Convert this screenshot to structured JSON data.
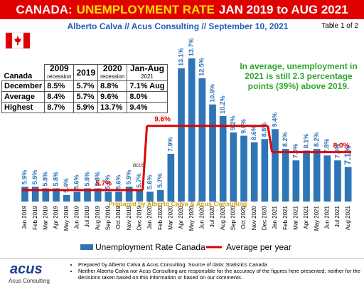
{
  "chart_data": {
    "type": "bar",
    "title": [
      "CANADA:",
      "UNEMPLOYMENT RATE",
      "JAN 2019 to AUG 2021"
    ],
    "subtitle": "Alberto Calva // Acus Consulting // September 10, 2021",
    "page_note": "Table 1 of 2",
    "annotation": "In average, unemployment in 2021 is still 2.3 percentage points (39%) above 2019.",
    "watermark": "Prepared by Alberto Calva & Acus Consulting",
    "logo_mark": "acus",
    "categories": [
      "Jan 2019",
      "Feb 2019",
      "Mar 2019",
      "Apr 2019",
      "May 2019",
      "Jun 2019",
      "Jul 2019",
      "Aug 2019",
      "Sep 2019",
      "Oct 2019",
      "Nov 2019",
      "Dec 2019",
      "Jan 2020",
      "Feb 2020",
      "Mar 2020",
      "Apr 2020",
      "May 2020",
      "Jun 2020",
      "Jul 2020",
      "Aug 2020",
      "Sep 2020",
      "Oct 2020",
      "Nov 2020",
      "Dec 2020",
      "Jan 2021",
      "Feb 2021",
      "Mar 2021",
      "Apr 2021",
      "May 2021",
      "Jun 2021",
      "Jul 2021",
      "Aug 2021"
    ],
    "series": [
      {
        "name": "Unemployment Rate Canada",
        "color": "#2e75b6",
        "values": [
          5.9,
          5.9,
          5.8,
          5.8,
          5.4,
          5.6,
          5.8,
          5.8,
          5.6,
          5.6,
          5.9,
          5.7,
          5.6,
          5.7,
          7.9,
          13.1,
          13.7,
          12.5,
          10.9,
          10.2,
          9.2,
          9.0,
          8.6,
          8.8,
          9.4,
          8.2,
          7.5,
          8.1,
          8.2,
          7.8,
          7.5,
          7.1
        ],
        "value_labels": [
          "5.9%",
          "5.9%",
          "5.8%",
          "5.8%",
          "5.4%",
          "5.6%",
          "5.8%",
          "5.8%",
          "5.6%",
          "5.6%",
          "5.9%",
          "5.7%",
          "5.6%",
          "5.7%",
          "7.9%",
          "13.1%",
          "13.7%",
          "12.5%",
          "10.9%",
          "10.2%",
          "9.2%",
          "9.0%",
          "8.6%",
          "8.8%",
          "9.4%",
          "8.2%",
          "7.5%",
          "8.1%",
          "8.2%",
          "7.8%",
          "7.5%",
          "7.1%"
        ]
      }
    ],
    "averages": {
      "name": "Average per year",
      "color": "#e00000",
      "values": [
        5.7,
        9.6,
        8.0
      ],
      "value_labels": [
        "5.7%",
        "9.6%",
        "8.0%"
      ]
    },
    "ylim": [
      5,
      14.5
    ]
  },
  "table": {
    "corner": "Canada",
    "headers": [
      [
        "2009",
        "recession"
      ],
      [
        "2019"
      ],
      [
        "2020",
        "recession"
      ],
      [
        "Jan-Aug",
        "2021"
      ]
    ],
    "rows": [
      [
        "December",
        "8.5%",
        "5.7%",
        "8.8%",
        "7.1% Aug"
      ],
      [
        "Average",
        "8.4%",
        "5.7%",
        "9.6%",
        "8.0%"
      ],
      [
        "Highest",
        "8.7%",
        "5.9%",
        "13.7%",
        "9.4%"
      ]
    ]
  },
  "footer": {
    "logo": "acus",
    "logo_sub": "Acus Consulting",
    "notes": [
      "Prepared by Alberto Calva & Acus Consulting. Source of data: Statistics Canada",
      "Neither Alberto Calva nor Acus Consulting are responsible for the accuracy of the figures here presented; neither for the decisions taken based on this information or based on our comments."
    ]
  }
}
